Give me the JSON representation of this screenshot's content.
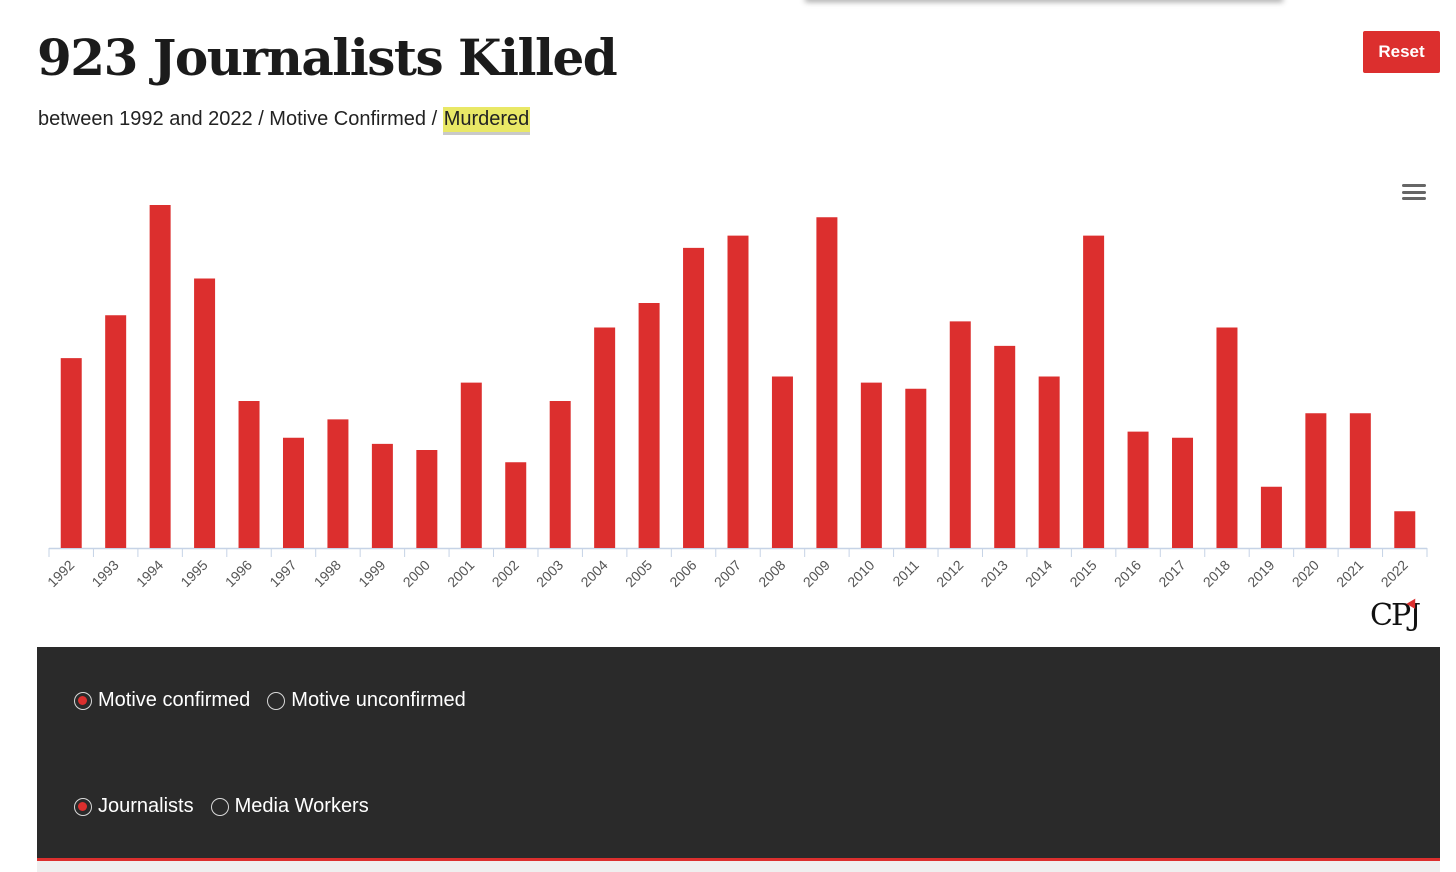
{
  "header": {
    "title": "923 Journalists Killed",
    "subtitle_prefix": "between 1992 and 2022 / Motive Confirmed / ",
    "subtitle_highlight": "Murdered",
    "reset_label": "Reset"
  },
  "chart_data": {
    "type": "bar",
    "title": "",
    "xlabel": "",
    "ylabel": "",
    "categories": [
      "1992",
      "1993",
      "1994",
      "1995",
      "1996",
      "1997",
      "1998",
      "1999",
      "2000",
      "2001",
      "2002",
      "2003",
      "2004",
      "2005",
      "2006",
      "2007",
      "2008",
      "2009",
      "2010",
      "2011",
      "2012",
      "2013",
      "2014",
      "2015",
      "2016",
      "2017",
      "2018",
      "2019",
      "2020",
      "2021",
      "2022"
    ],
    "values": [
      31,
      38,
      56,
      44,
      24,
      18,
      21,
      17,
      16,
      27,
      14,
      24,
      36,
      40,
      49,
      51,
      28,
      54,
      27,
      26,
      37,
      33,
      28,
      51,
      19,
      18,
      36,
      10,
      22,
      22,
      6
    ],
    "ylim": [
      0,
      56
    ],
    "grid": false,
    "legend": "none",
    "bar_color": "#dc2f2e"
  },
  "logo": {
    "text": "CPJ"
  },
  "controls": {
    "motive": [
      {
        "label": "Motive confirmed",
        "selected": true
      },
      {
        "label": "Motive unconfirmed",
        "selected": false
      }
    ],
    "role": [
      {
        "label": "Journalists",
        "selected": true
      },
      {
        "label": "Media Workers",
        "selected": false
      }
    ]
  },
  "colors": {
    "accent": "#dc2f2e",
    "panel": "#2a2a2a",
    "highlight": "#e9e866"
  }
}
